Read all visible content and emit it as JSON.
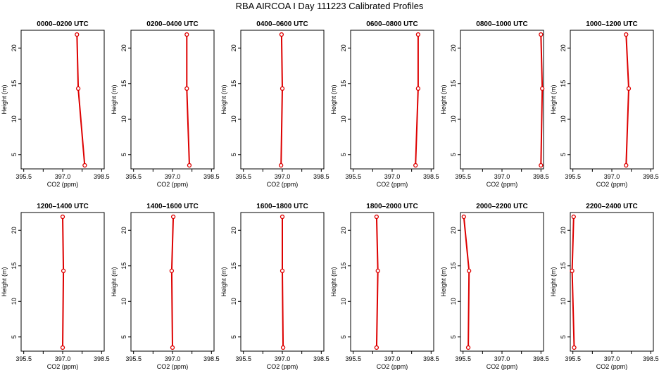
{
  "title": "RBA AIRCOA I  Day 111223  Calibrated Profiles",
  "colors": {
    "profile": "#dd0000",
    "axis": "#000000",
    "background": "#ffffff"
  },
  "chart_data": [
    {
      "type": "line",
      "title": "0000–0200 UTC",
      "xlabel": "CO2 (ppm)",
      "ylabel": "Height (m)",
      "xlim": [
        395.4,
        398.6
      ],
      "ylim": [
        3,
        22.5
      ],
      "xticks": [
        "395.5",
        "397.0",
        "398.5"
      ],
      "yticks": [
        "5",
        "10",
        "15",
        "20"
      ],
      "grid": false,
      "series": [
        {
          "x": [
            397.85,
            397.6,
            397.55
          ],
          "y": [
            3.5,
            14.3,
            21.9
          ]
        }
      ]
    },
    {
      "type": "line",
      "title": "0200–0400 UTC",
      "xlabel": "CO2 (ppm)",
      "ylabel": "Height (m)",
      "xlim": [
        395.4,
        398.6
      ],
      "ylim": [
        3,
        22.5
      ],
      "xticks": [
        "395.5",
        "397.0",
        "398.5"
      ],
      "yticks": [
        "5",
        "10",
        "15",
        "20"
      ],
      "grid": false,
      "series": [
        {
          "x": [
            397.65,
            397.55,
            397.55
          ],
          "y": [
            3.5,
            14.3,
            21.9
          ]
        }
      ]
    },
    {
      "type": "line",
      "title": "0400–0600 UTC",
      "xlabel": "CO2 (ppm)",
      "ylabel": "Height (m)",
      "xlim": [
        395.4,
        398.6
      ],
      "ylim": [
        3,
        22.5
      ],
      "xticks": [
        "395.5",
        "397.0",
        "398.5"
      ],
      "yticks": [
        "5",
        "10",
        "15",
        "20"
      ],
      "grid": false,
      "series": [
        {
          "x": [
            396.95,
            397.0,
            396.97
          ],
          "y": [
            3.5,
            14.3,
            21.9
          ]
        }
      ]
    },
    {
      "type": "line",
      "title": "0600–0800 UTC",
      "xlabel": "CO2 (ppm)",
      "ylabel": "Height (m)",
      "xlim": [
        395.4,
        398.6
      ],
      "ylim": [
        3,
        22.5
      ],
      "xticks": [
        "395.5",
        "397.0",
        "398.5"
      ],
      "yticks": [
        "5",
        "10",
        "15",
        "20"
      ],
      "grid": false,
      "series": [
        {
          "x": [
            397.9,
            398.0,
            398.0
          ],
          "y": [
            3.5,
            14.3,
            21.9
          ]
        }
      ]
    },
    {
      "type": "line",
      "title": "0800–1000 UTC",
      "xlabel": "CO2 (ppm)",
      "ylabel": "Height (m)",
      "xlim": [
        395.4,
        398.6
      ],
      "ylim": [
        3,
        22.5
      ],
      "xticks": [
        "395.5",
        "397.0",
        "398.5"
      ],
      "yticks": [
        "5",
        "10",
        "15",
        "20"
      ],
      "grid": false,
      "series": [
        {
          "x": [
            398.5,
            398.55,
            398.5
          ],
          "y": [
            3.5,
            14.3,
            21.9
          ]
        }
      ]
    },
    {
      "type": "line",
      "title": "1000–1200 UTC",
      "xlabel": "CO2 (ppm)",
      "ylabel": "Height (m)",
      "xlim": [
        395.4,
        398.6
      ],
      "ylim": [
        3,
        22.5
      ],
      "xticks": [
        "395.5",
        "397.0",
        "398.5"
      ],
      "yticks": [
        "5",
        "10",
        "15",
        "20"
      ],
      "grid": false,
      "series": [
        {
          "x": [
            397.55,
            397.65,
            397.55
          ],
          "y": [
            3.5,
            14.3,
            21.9
          ]
        }
      ]
    },
    {
      "type": "line",
      "title": "1200–1400 UTC",
      "xlabel": "CO2 (ppm)",
      "ylabel": "Height (m)",
      "xlim": [
        395.4,
        398.6
      ],
      "ylim": [
        3,
        22.5
      ],
      "xticks": [
        "395.5",
        "397.0",
        "398.5"
      ],
      "yticks": [
        "5",
        "10",
        "15",
        "20"
      ],
      "grid": false,
      "series": [
        {
          "x": [
            397.0,
            397.03,
            397.0
          ],
          "y": [
            3.5,
            14.3,
            21.9
          ]
        }
      ]
    },
    {
      "type": "line",
      "title": "1400–1600 UTC",
      "xlabel": "CO2 (ppm)",
      "ylabel": "Height (m)",
      "xlim": [
        395.4,
        398.6
      ],
      "ylim": [
        3,
        22.5
      ],
      "xticks": [
        "395.5",
        "397.0",
        "398.5"
      ],
      "yticks": [
        "5",
        "10",
        "15",
        "20"
      ],
      "grid": false,
      "series": [
        {
          "x": [
            397.0,
            396.97,
            397.03
          ],
          "y": [
            3.5,
            14.3,
            21.9
          ]
        }
      ]
    },
    {
      "type": "line",
      "title": "1600–1800 UTC",
      "xlabel": "CO2 (ppm)",
      "ylabel": "Height (m)",
      "xlim": [
        395.4,
        398.6
      ],
      "ylim": [
        3,
        22.5
      ],
      "xticks": [
        "395.5",
        "397.0",
        "398.5"
      ],
      "yticks": [
        "5",
        "10",
        "15",
        "20"
      ],
      "grid": false,
      "series": [
        {
          "x": [
            397.03,
            397.0,
            397.0
          ],
          "y": [
            3.5,
            14.3,
            21.9
          ]
        }
      ]
    },
    {
      "type": "line",
      "title": "1800–2000 UTC",
      "xlabel": "CO2 (ppm)",
      "ylabel": "Height (m)",
      "xlim": [
        395.4,
        398.6
      ],
      "ylim": [
        3,
        22.5
      ],
      "xticks": [
        "395.5",
        "397.0",
        "398.5"
      ],
      "yticks": [
        "5",
        "10",
        "15",
        "20"
      ],
      "grid": false,
      "series": [
        {
          "x": [
            396.4,
            396.45,
            396.4
          ],
          "y": [
            3.5,
            14.3,
            21.9
          ]
        }
      ]
    },
    {
      "type": "line",
      "title": "2000–2200 UTC",
      "xlabel": "CO2 (ppm)",
      "ylabel": "Height (m)",
      "xlim": [
        395.4,
        398.6
      ],
      "ylim": [
        3,
        22.5
      ],
      "xticks": [
        "395.5",
        "397.0",
        "398.5"
      ],
      "yticks": [
        "5",
        "10",
        "15",
        "20"
      ],
      "grid": false,
      "series": [
        {
          "x": [
            395.7,
            395.73,
            395.53
          ],
          "y": [
            3.5,
            14.3,
            21.9
          ]
        }
      ]
    },
    {
      "type": "line",
      "title": "2200–2400 UTC",
      "xlabel": "CO2 (ppm)",
      "ylabel": "Height (m)",
      "xlim": [
        395.4,
        398.6
      ],
      "ylim": [
        3,
        22.5
      ],
      "xticks": [
        "395.5",
        "397.0",
        "398.5"
      ],
      "yticks": [
        "5",
        "10",
        "15",
        "20"
      ],
      "grid": false,
      "series": [
        {
          "x": [
            395.55,
            395.47,
            395.53
          ],
          "y": [
            3.5,
            14.3,
            21.9
          ]
        }
      ]
    }
  ]
}
